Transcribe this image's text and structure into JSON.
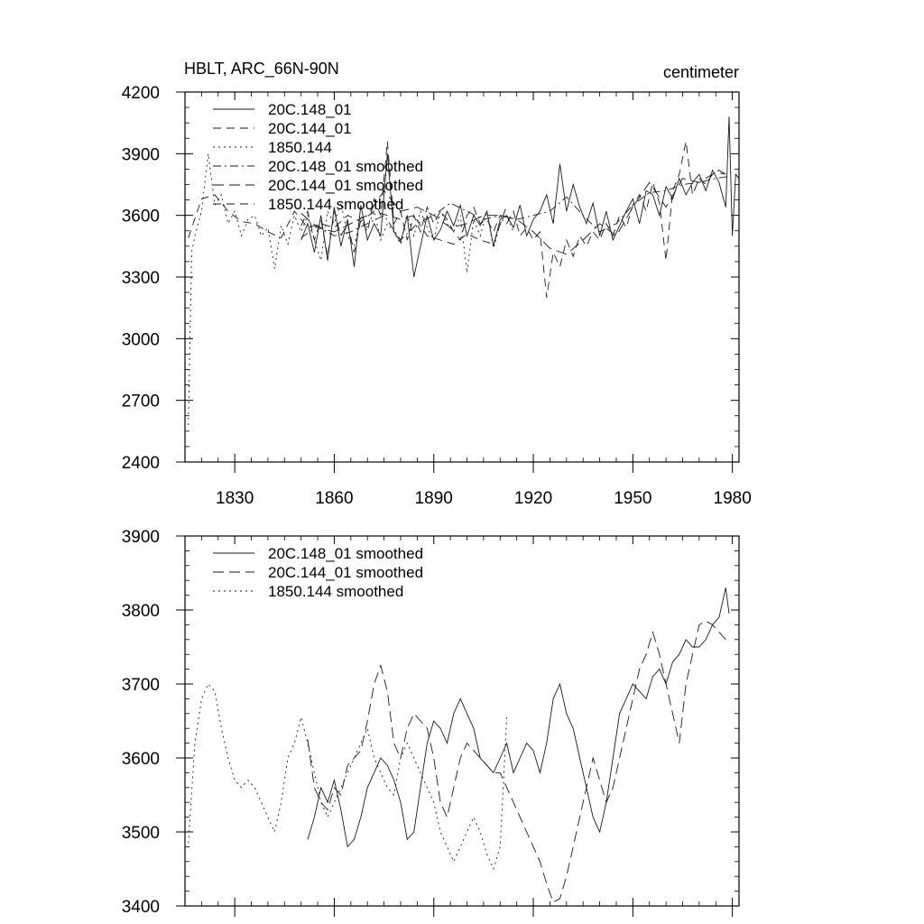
{
  "chart_data": [
    {
      "type": "line",
      "title": "HBLT, ARC_66N-90N",
      "units": "centimeter",
      "xlim": [
        1815,
        1982
      ],
      "ylim": [
        2400,
        4200
      ],
      "xticks": [
        1830,
        1860,
        1890,
        1920,
        1950,
        1980
      ],
      "yticks": [
        2400,
        2700,
        3000,
        3300,
        3600,
        3900,
        4200
      ],
      "legend_position": "top-left",
      "series": [
        {
          "name": "20C.148_01",
          "style": "solid",
          "x": [
            1850,
            1852,
            1854,
            1856,
            1858,
            1860,
            1862,
            1864,
            1866,
            1868,
            1870,
            1872,
            1874,
            1876,
            1878,
            1880,
            1882,
            1884,
            1886,
            1888,
            1890,
            1892,
            1894,
            1896,
            1898,
            1900,
            1902,
            1904,
            1906,
            1908,
            1910,
            1912,
            1914,
            1916,
            1918,
            1920,
            1922,
            1924,
            1926,
            1928,
            1930,
            1932,
            1934,
            1936,
            1938,
            1940,
            1942,
            1944,
            1946,
            1948,
            1950,
            1952,
            1954,
            1956,
            1958,
            1960,
            1962,
            1964,
            1966,
            1968,
            1970,
            1972,
            1974,
            1976,
            1978,
            1979,
            1980,
            1981,
            1982
          ],
          "y": [
            3480,
            3560,
            3420,
            3600,
            3380,
            3640,
            3450,
            3580,
            3350,
            3650,
            3480,
            3560,
            3500,
            3900,
            3520,
            3470,
            3600,
            3300,
            3450,
            3600,
            3480,
            3530,
            3620,
            3550,
            3650,
            3500,
            3600,
            3550,
            3620,
            3450,
            3580,
            3600,
            3540,
            3650,
            3500,
            3580,
            3620,
            3700,
            3560,
            3850,
            3620,
            3750,
            3640,
            3560,
            3660,
            3500,
            3620,
            3480,
            3550,
            3620,
            3680,
            3560,
            3720,
            3700,
            3600,
            3740,
            3680,
            3780,
            3700,
            3760,
            3800,
            3720,
            3820,
            3760,
            3640,
            4080,
            3500,
            3800,
            3780
          ]
        },
        {
          "name": "20C.144_01",
          "style": "dashed",
          "x": [
            1850,
            1852,
            1854,
            1856,
            1858,
            1860,
            1862,
            1864,
            1866,
            1868,
            1870,
            1872,
            1874,
            1876,
            1878,
            1880,
            1882,
            1884,
            1886,
            1888,
            1890,
            1892,
            1894,
            1896,
            1898,
            1900,
            1902,
            1904,
            1906,
            1908,
            1910,
            1912,
            1914,
            1916,
            1918,
            1920,
            1922,
            1924,
            1926,
            1928,
            1930,
            1932,
            1934,
            1936,
            1938,
            1940,
            1942,
            1944,
            1946,
            1948,
            1950,
            1952,
            1954,
            1956,
            1958,
            1960,
            1962,
            1964,
            1966,
            1968,
            1970,
            1972,
            1974,
            1976,
            1978
          ],
          "y": [
            3550,
            3620,
            3480,
            3580,
            3400,
            3620,
            3500,
            3560,
            3420,
            3580,
            3520,
            3680,
            3600,
            3960,
            3560,
            3620,
            3480,
            3600,
            3520,
            3640,
            3560,
            3620,
            3580,
            3520,
            3480,
            3600,
            3640,
            3560,
            3580,
            3520,
            3600,
            3560,
            3620,
            3500,
            3540,
            3480,
            3520,
            3200,
            3420,
            3350,
            3480,
            3400,
            3500,
            3450,
            3520,
            3480,
            3560,
            3500,
            3600,
            3540,
            3650,
            3700,
            3620,
            3760,
            3660,
            3380,
            3720,
            3800,
            3960,
            3700,
            3780,
            3750,
            3800,
            3820,
            3800
          ]
        },
        {
          "name": "1850.144",
          "style": "dotted",
          "x": [
            1816,
            1817,
            1818,
            1820,
            1822,
            1824,
            1826,
            1828,
            1830,
            1832,
            1834,
            1836,
            1838,
            1840,
            1842,
            1844,
            1846,
            1848,
            1850,
            1852,
            1854,
            1856,
            1858,
            1860,
            1862,
            1864,
            1866,
            1868,
            1870,
            1872,
            1874,
            1876,
            1878,
            1880,
            1882,
            1884,
            1886,
            1888,
            1890,
            1892,
            1894,
            1896,
            1898,
            1900,
            1902,
            1904,
            1906,
            1908,
            1910,
            1912,
            1914
          ],
          "y": [
            2580,
            3420,
            3500,
            3620,
            3900,
            3650,
            3700,
            3560,
            3620,
            3500,
            3580,
            3600,
            3500,
            3540,
            3340,
            3550,
            3460,
            3600,
            3520,
            3600,
            3480,
            3380,
            3620,
            3560,
            3660,
            3500,
            3450,
            3600,
            3540,
            3620,
            3480,
            3560,
            3520,
            3460,
            3600,
            3500,
            3620,
            3540,
            3480,
            3620,
            3560,
            3520,
            3600,
            3320,
            3580,
            3500,
            3620,
            3440,
            3560,
            3600,
            3520
          ]
        },
        {
          "name": "20C.148_01 smoothed",
          "style": "dash-dot",
          "x": [
            1850,
            1855,
            1860,
            1865,
            1870,
            1875,
            1880,
            1885,
            1890,
            1895,
            1900,
            1905,
            1910,
            1915,
            1920,
            1925,
            1930,
            1935,
            1940,
            1945,
            1950,
            1955,
            1960,
            1965,
            1970,
            1975,
            1979
          ],
          "y": [
            3490,
            3550,
            3500,
            3520,
            3560,
            3600,
            3480,
            3560,
            3600,
            3660,
            3620,
            3580,
            3600,
            3580,
            3600,
            3620,
            3690,
            3600,
            3520,
            3560,
            3650,
            3710,
            3720,
            3750,
            3760,
            3780,
            3790
          ]
        },
        {
          "name": "20C.144_01 smoothed",
          "style": "long-dash",
          "x": [
            1850,
            1855,
            1860,
            1865,
            1870,
            1875,
            1880,
            1885,
            1890,
            1895,
            1900,
            1905,
            1910,
            1915,
            1920,
            1925,
            1930,
            1935,
            1940,
            1945,
            1950,
            1955,
            1960,
            1965,
            1970,
            1975,
            1978
          ],
          "y": [
            3610,
            3540,
            3520,
            3560,
            3600,
            3720,
            3620,
            3640,
            3600,
            3540,
            3560,
            3600,
            3600,
            3580,
            3520,
            3440,
            3410,
            3480,
            3560,
            3500,
            3640,
            3760,
            3640,
            3780,
            3760,
            3810,
            3800
          ]
        },
        {
          "name": "1850.144 smoothed",
          "style": "dashed",
          "x": [
            1816,
            1820,
            1824,
            1828,
            1832,
            1836,
            1840,
            1844,
            1848,
            1852,
            1856,
            1860,
            1864,
            1868,
            1872,
            1876,
            1880,
            1884,
            1888,
            1892,
            1896,
            1900,
            1904,
            1908,
            1912
          ],
          "y": [
            3490,
            3680,
            3700,
            3620,
            3570,
            3560,
            3520,
            3490,
            3620,
            3540,
            3560,
            3540,
            3600,
            3570,
            3620,
            3600,
            3580,
            3600,
            3500,
            3480,
            3460,
            3510,
            3480,
            3460,
            3650
          ]
        }
      ]
    },
    {
      "type": "line",
      "title": "",
      "xlim": [
        1815,
        1982
      ],
      "ylim": [
        3400,
        3900
      ],
      "xticks": [
        1830,
        1860,
        1890,
        1920,
        1950,
        1980
      ],
      "yticks": [
        3400,
        3500,
        3600,
        3700,
        3800,
        3900
      ],
      "legend_position": "top-left",
      "series": [
        {
          "name": "20C.148_01 smoothed",
          "style": "solid",
          "x": [
            1852,
            1854,
            1856,
            1858,
            1860,
            1862,
            1864,
            1866,
            1868,
            1870,
            1872,
            1874,
            1876,
            1878,
            1880,
            1882,
            1884,
            1886,
            1888,
            1890,
            1892,
            1894,
            1896,
            1898,
            1900,
            1902,
            1904,
            1906,
            1908,
            1910,
            1912,
            1914,
            1916,
            1918,
            1920,
            1922,
            1924,
            1926,
            1928,
            1930,
            1932,
            1934,
            1936,
            1938,
            1940,
            1942,
            1944,
            1946,
            1948,
            1950,
            1952,
            1954,
            1956,
            1958,
            1960,
            1962,
            1964,
            1966,
            1968,
            1970,
            1972,
            1974,
            1976,
            1978,
            1979
          ],
          "y": [
            3490,
            3520,
            3560,
            3540,
            3570,
            3530,
            3480,
            3490,
            3520,
            3560,
            3580,
            3600,
            3590,
            3570,
            3540,
            3490,
            3500,
            3560,
            3620,
            3650,
            3640,
            3620,
            3660,
            3680,
            3660,
            3640,
            3600,
            3590,
            3580,
            3600,
            3620,
            3580,
            3600,
            3620,
            3610,
            3580,
            3620,
            3680,
            3700,
            3660,
            3640,
            3600,
            3560,
            3520,
            3500,
            3540,
            3600,
            3660,
            3680,
            3700,
            3690,
            3680,
            3710,
            3720,
            3700,
            3730,
            3740,
            3760,
            3750,
            3750,
            3760,
            3780,
            3790,
            3830,
            3795
          ]
        },
        {
          "name": "20C.144_01 smoothed",
          "style": "long-dash",
          "x": [
            1852,
            1854,
            1856,
            1858,
            1860,
            1862,
            1864,
            1866,
            1868,
            1870,
            1872,
            1874,
            1876,
            1878,
            1880,
            1882,
            1884,
            1886,
            1888,
            1890,
            1892,
            1894,
            1896,
            1898,
            1900,
            1902,
            1904,
            1906,
            1908,
            1910,
            1912,
            1914,
            1916,
            1918,
            1920,
            1922,
            1924,
            1926,
            1928,
            1930,
            1932,
            1934,
            1936,
            1938,
            1940,
            1942,
            1944,
            1946,
            1948,
            1950,
            1952,
            1954,
            1956,
            1958,
            1960,
            1962,
            1964,
            1966,
            1968,
            1970,
            1972,
            1974,
            1976,
            1978
          ],
          "y": [
            3625,
            3560,
            3540,
            3530,
            3560,
            3550,
            3590,
            3600,
            3610,
            3650,
            3700,
            3725,
            3690,
            3620,
            3600,
            3640,
            3660,
            3650,
            3640,
            3600,
            3540,
            3520,
            3560,
            3600,
            3620,
            3610,
            3600,
            3590,
            3580,
            3580,
            3560,
            3540,
            3520,
            3500,
            3480,
            3460,
            3430,
            3405,
            3410,
            3440,
            3480,
            3520,
            3560,
            3600,
            3570,
            3540,
            3560,
            3600,
            3640,
            3680,
            3720,
            3740,
            3770,
            3740,
            3700,
            3660,
            3620,
            3700,
            3740,
            3780,
            3785,
            3780,
            3770,
            3760
          ]
        },
        {
          "name": "1850.144 smoothed",
          "style": "dotted",
          "x": [
            1816,
            1818,
            1820,
            1822,
            1824,
            1826,
            1828,
            1830,
            1832,
            1834,
            1836,
            1838,
            1840,
            1842,
            1844,
            1846,
            1848,
            1850,
            1852,
            1854,
            1856,
            1858,
            1860,
            1862,
            1864,
            1866,
            1868,
            1870,
            1872,
            1874,
            1876,
            1878,
            1880,
            1882,
            1884,
            1886,
            1888,
            1890,
            1892,
            1894,
            1896,
            1898,
            1900,
            1902,
            1904,
            1906,
            1908,
            1910,
            1912
          ],
          "y": [
            3485,
            3620,
            3680,
            3700,
            3690,
            3640,
            3600,
            3570,
            3560,
            3570,
            3560,
            3540,
            3520,
            3500,
            3540,
            3600,
            3620,
            3655,
            3620,
            3580,
            3540,
            3520,
            3540,
            3560,
            3580,
            3600,
            3620,
            3640,
            3600,
            3580,
            3560,
            3550,
            3600,
            3620,
            3600,
            3580,
            3560,
            3540,
            3500,
            3480,
            3460,
            3480,
            3500,
            3520,
            3500,
            3470,
            3450,
            3480,
            3655
          ]
        }
      ]
    }
  ]
}
